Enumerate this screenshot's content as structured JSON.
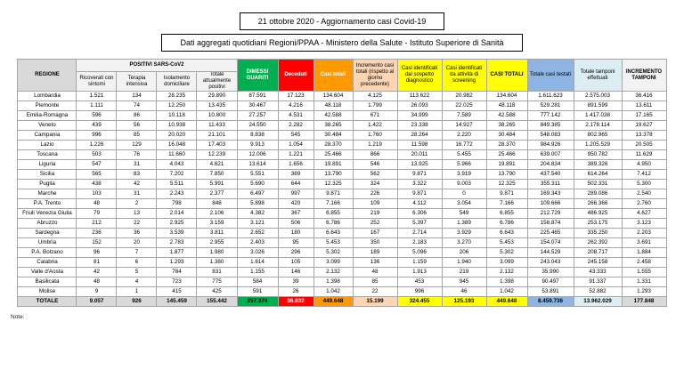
{
  "header": {
    "line1": "21 ottobre 2020 - Aggiornamento casi Covid-19",
    "line2": "Dati aggregati quotidiani Regioni/PPAA - Ministero della Salute - Istituto Superiore di Sanità"
  },
  "colors": {
    "green": "#00b050",
    "red": "#ff0000",
    "orange": "#ff9900",
    "peach": "#fcd5b4",
    "yellow": "#ffff00",
    "blue": "#8db4e2",
    "light_blue": "#daeef3",
    "header_gray": "#d9d9d9"
  },
  "table": {
    "regione_label": "REGIONE",
    "group_positivi_label": "POSITIVI SARS-CoV2",
    "columns": [
      {
        "label": "Ricoverati con sintomi"
      },
      {
        "label": "Terapia intensiva"
      },
      {
        "label": "Isolamento domiciliare"
      },
      {
        "label": "Totale attualmente positivi"
      },
      {
        "label": "DIMESSI GUARITI",
        "color": "#00b050"
      },
      {
        "label": "Deceduti",
        "color": "#ff0000"
      },
      {
        "label": "Casi totali",
        "color": "#ff9900"
      },
      {
        "label": "Incremento casi totali (rispetto al giorno precedente)",
        "color": "#fcd5b4"
      },
      {
        "label": "Casi identificati dal sospetto diagnostico",
        "color": "#ffff00"
      },
      {
        "label": "Casi identificati da attività di screening",
        "color": "#ffff00"
      },
      {
        "label": "CASI TOTALI",
        "color": "#ffff00"
      },
      {
        "label": "Totale casi testati",
        "color": "#8db4e2"
      },
      {
        "label": "Totale tamponi effettuati",
        "color": "#daeef3"
      },
      {
        "label": "INCREMENTO TAMPONI",
        "color": "#f2f2f2"
      }
    ],
    "rows": [
      {
        "regione": "Lombardia",
        "values": [
          "1.521",
          "134",
          "28.235",
          "29.890",
          "87.591",
          "17.123",
          "134.604",
          "4.125",
          "113.622",
          "20.982",
          "134.604",
          "1.611.623",
          "2.575.003",
          "36.416"
        ]
      },
      {
        "regione": "Piemonte",
        "values": [
          "1.111",
          "74",
          "12.250",
          "13.435",
          "30.467",
          "4.216",
          "48.118",
          "1.799",
          "26.093",
          "22.025",
          "48.118",
          "529.281",
          "891.599",
          "13.611"
        ]
      },
      {
        "regione": "Emilia-Romagna",
        "values": [
          "596",
          "86",
          "10.118",
          "10.800",
          "27.257",
          "4.531",
          "42.588",
          "671",
          "34.999",
          "7.589",
          "42.588",
          "777.142",
          "1.417.038",
          "17.165"
        ]
      },
      {
        "regione": "Veneto",
        "values": [
          "439",
          "56",
          "10.938",
          "11.433",
          "24.550",
          "2.282",
          "38.265",
          "1.422",
          "23.338",
          "14.927",
          "38.265",
          "849.385",
          "2.178.114",
          "19.627"
        ]
      },
      {
        "regione": "Campania",
        "values": [
          "996",
          "85",
          "20.020",
          "21.101",
          "8.838",
          "545",
          "30.484",
          "1.760",
          "28.264",
          "2.220",
          "30.484",
          "548.083",
          "802.965",
          "13.378"
        ]
      },
      {
        "regione": "Lazio",
        "values": [
          "1.226",
          "129",
          "16.048",
          "17.403",
          "9.913",
          "1.054",
          "28.370",
          "1.219",
          "11.598",
          "16.772",
          "28.370",
          "984.926",
          "1.205.529",
          "20.505"
        ]
      },
      {
        "regione": "Toscana",
        "values": [
          "503",
          "76",
          "11.660",
          "12.239",
          "12.006",
          "1.221",
          "25.466",
          "866",
          "20.011",
          "5.455",
          "25.466",
          "639.007",
          "950.782",
          "11.629"
        ]
      },
      {
        "regione": "Liguria",
        "values": [
          "547",
          "31",
          "4.043",
          "4.621",
          "13.614",
          "1.656",
          "19.891",
          "546",
          "13.925",
          "5.966",
          "19.891",
          "204.834",
          "389.326",
          "4.950"
        ]
      },
      {
        "regione": "Sicilia",
        "values": [
          "565",
          "83",
          "7.202",
          "7.850",
          "5.551",
          "389",
          "13.790",
          "562",
          "9.871",
          "3.919",
          "13.790",
          "437.540",
          "614.264",
          "7.412"
        ]
      },
      {
        "regione": "Puglia",
        "values": [
          "438",
          "42",
          "5.511",
          "5.991",
          "5.690",
          "644",
          "12.325",
          "324",
          "3.322",
          "9.003",
          "12.325",
          "355.311",
          "502.331",
          "5.300"
        ]
      },
      {
        "regione": "Marche",
        "values": [
          "103",
          "31",
          "2.243",
          "2.377",
          "6.497",
          "997",
          "9.871",
          "226",
          "9.871",
          "0",
          "9.871",
          "169.343",
          "289.086",
          "2.540"
        ]
      },
      {
        "regione": "P.A. Trento",
        "values": [
          "48",
          "2",
          "798",
          "848",
          "5.898",
          "420",
          "7.166",
          "109",
          "4.112",
          "3.054",
          "7.166",
          "109.666",
          "266.366",
          "2.760"
        ]
      },
      {
        "regione": "Friuli Venezia Giulia",
        "values": [
          "79",
          "13",
          "2.014",
          "2.106",
          "4.382",
          "367",
          "6.855",
          "219",
          "6.306",
          "549",
          "6.855",
          "212.729",
          "486.925",
          "4.627"
        ]
      },
      {
        "regione": "Abruzzo",
        "values": [
          "212",
          "22",
          "2.925",
          "3.159",
          "3.121",
          "506",
          "6.786",
          "252",
          "5.397",
          "1.389",
          "6.786",
          "158.874",
          "253.175",
          "3.123"
        ]
      },
      {
        "regione": "Sardegna",
        "values": [
          "236",
          "36",
          "3.539",
          "3.811",
          "2.652",
          "180",
          "6.643",
          "167",
          "2.714",
          "3.929",
          "6.643",
          "225.465",
          "335.250",
          "2.203"
        ]
      },
      {
        "regione": "Umbria",
        "values": [
          "152",
          "20",
          "2.783",
          "2.955",
          "2.403",
          "95",
          "5.453",
          "350",
          "2.183",
          "3.270",
          "5.453",
          "154.074",
          "262.392",
          "3.691"
        ]
      },
      {
        "regione": "P.A. Bolzano",
        "values": [
          "96",
          "7",
          "1.877",
          "1.980",
          "3.026",
          "296",
          "5.302",
          "189",
          "5.096",
          "206",
          "5.302",
          "144.529",
          "208.717",
          "1.884"
        ]
      },
      {
        "regione": "Calabria",
        "values": [
          "81",
          "6",
          "1.293",
          "1.380",
          "1.614",
          "105",
          "3.099",
          "136",
          "1.159",
          "1.940",
          "3.099",
          "243.043",
          "245.158",
          "2.458"
        ]
      },
      {
        "regione": "Valle d'Aosta",
        "values": [
          "42",
          "5",
          "784",
          "831",
          "1.155",
          "146",
          "2.132",
          "48",
          "1.913",
          "219",
          "2.132",
          "35.990",
          "43.333",
          "1.555"
        ]
      },
      {
        "regione": "Basilicata",
        "values": [
          "48",
          "4",
          "723",
          "775",
          "584",
          "39",
          "1.398",
          "85",
          "453",
          "945",
          "1.398",
          "90.497",
          "91.337",
          "1.331"
        ]
      },
      {
        "regione": "Molise",
        "values": [
          "9",
          "1",
          "415",
          "425",
          "591",
          "26",
          "1.042",
          "22",
          "996",
          "46",
          "1.042",
          "53.891",
          "52.882",
          "1.293"
        ]
      }
    ],
    "totale": {
      "regione": "TOTALE",
      "values": [
        "9.057",
        "926",
        "145.459",
        "155.442",
        "257.374",
        "36.832",
        "449.648",
        "15.199",
        "324.455",
        "125.193",
        "449.648",
        "8.459.736",
        "13.962.029",
        "177.848"
      ]
    }
  },
  "footer": {
    "note": "Note:"
  }
}
